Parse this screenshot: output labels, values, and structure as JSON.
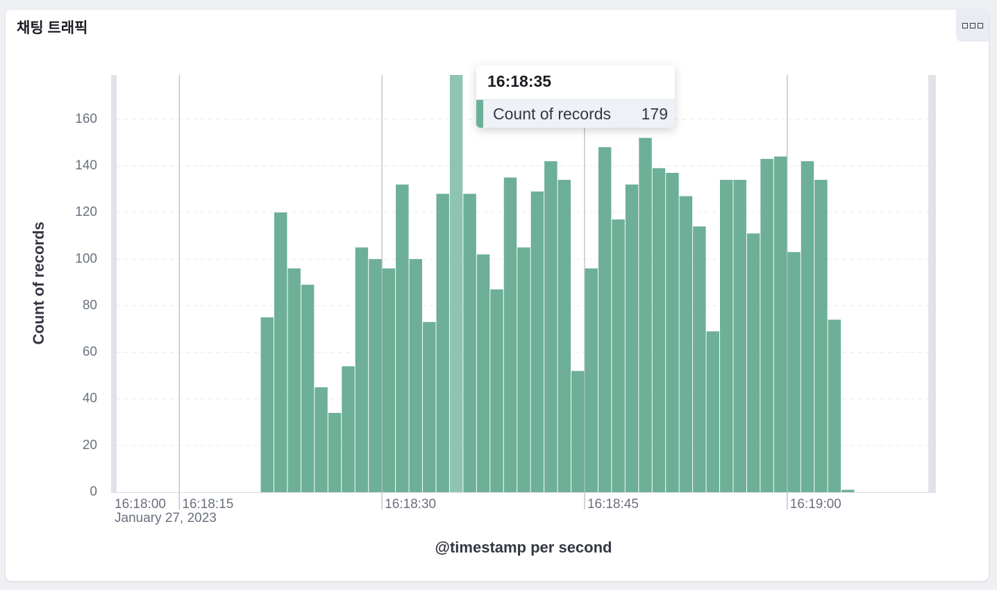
{
  "panel": {
    "title": "채팅 트래픽"
  },
  "chart_data": {
    "type": "bar",
    "xlabel": "@timestamp per second",
    "ylabel": "Count of records",
    "color": "#6daf97",
    "x": [
      21,
      22,
      23,
      24,
      25,
      26,
      27,
      28,
      29,
      30,
      31,
      32,
      33,
      34,
      35,
      36,
      37,
      38,
      39,
      40,
      41,
      42,
      43,
      44,
      45,
      46,
      47,
      48,
      49,
      50,
      51,
      52,
      53,
      54,
      55,
      56,
      57,
      58,
      59,
      60,
      61,
      62,
      63,
      64
    ],
    "values": [
      75,
      120,
      96,
      89,
      45,
      34,
      54,
      105,
      100,
      96,
      132,
      100,
      73,
      128,
      179,
      128,
      102,
      87,
      135,
      105,
      129,
      142,
      134,
      52,
      96,
      148,
      117,
      132,
      152,
      139,
      137,
      127,
      114,
      69,
      134,
      134,
      111,
      143,
      144,
      103,
      142,
      134,
      74,
      1
    ],
    "xlim": [
      10.1,
      70.6
    ],
    "xticks": [
      {
        "value": 15,
        "label": "16:18:15"
      },
      {
        "value": 30,
        "label": "16:18:30"
      },
      {
        "value": 45,
        "label": "16:18:45"
      },
      {
        "value": 60,
        "label": "16:19:00"
      }
    ],
    "x_start_label": "16:18:00",
    "date_label": "January 27, 2023",
    "ylim": [
      0,
      179
    ],
    "yticks": [
      0,
      20,
      40,
      60,
      80,
      100,
      120,
      140,
      160
    ],
    "grid": true,
    "tooltip": {
      "index": 14,
      "title": "16:18:35"
    }
  }
}
